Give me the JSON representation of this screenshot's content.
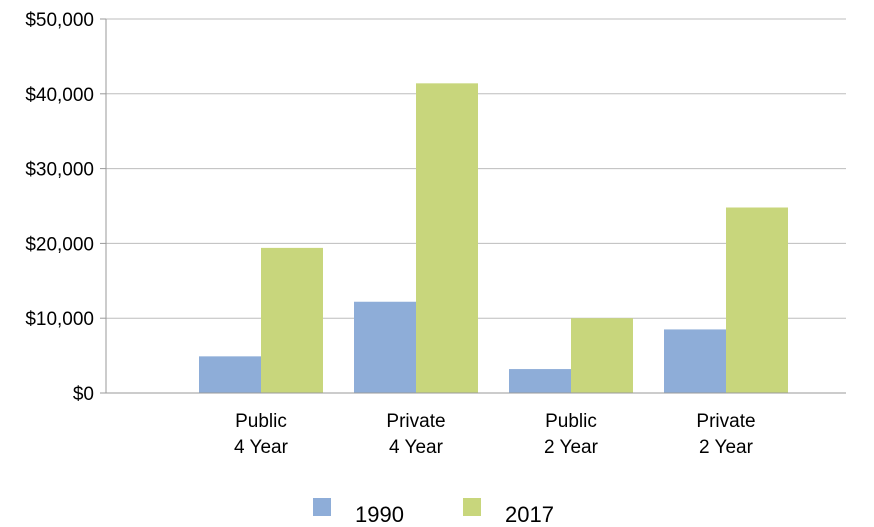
{
  "chart_data": {
    "type": "bar",
    "categories": [
      [
        "Public",
        "4 Year"
      ],
      [
        "Private",
        "4 Year"
      ],
      [
        "Public",
        "2 Year"
      ],
      [
        "Private",
        "2 Year"
      ]
    ],
    "series": [
      {
        "name": "1990",
        "color": "#8eadd8",
        "values": [
          4900,
          12200,
          3200,
          8500
        ]
      },
      {
        "name": "2017",
        "color": "#c8d67c",
        "values": [
          19400,
          41400,
          10000,
          24800
        ]
      }
    ],
    "y_ticks": [
      {
        "value": 0,
        "label": "$0"
      },
      {
        "value": 10000,
        "label": "$10,000"
      },
      {
        "value": 20000,
        "label": "$20,000"
      },
      {
        "value": 30000,
        "label": "$30,000"
      },
      {
        "value": 40000,
        "label": "$40,000"
      },
      {
        "value": 50000,
        "label": "$50,000"
      }
    ],
    "ylim": [
      0,
      50000
    ],
    "grid": true,
    "legend_position": "bottom-center",
    "title": "",
    "xlabel": "",
    "ylabel": ""
  },
  "colors": {
    "grid": "#bdbdbd",
    "axis": "#9a9a9a"
  }
}
